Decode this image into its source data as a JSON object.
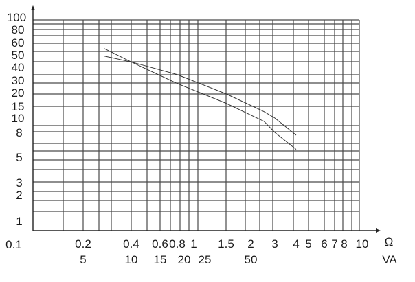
{
  "chart_data": {
    "type": "line",
    "title": "",
    "x_unit_labels": [
      "Ω",
      "VA"
    ],
    "x_tick_labels_ohm": [
      "0.1",
      "0.2",
      "0.4",
      "0.6",
      "0.8",
      "1",
      "1.5",
      "2",
      "3",
      "4",
      "5",
      "6",
      "7",
      "8",
      "10"
    ],
    "x_tick_labels_va": [
      "5",
      "10",
      "15",
      "20",
      "25",
      "50"
    ],
    "y_tick_labels": [
      "100",
      "80",
      "60",
      "50",
      "40",
      "30",
      "20",
      "15",
      "10",
      "8",
      "5",
      "3",
      "2",
      "1",
      "0.1"
    ],
    "xlim": [
      0.1,
      10
    ],
    "ylim": [
      0.1,
      100
    ],
    "grid": true,
    "series": [
      {
        "x": [
          0.27,
          0.4,
          0.8,
          1.5,
          2.5,
          3,
          4
        ],
        "y": [
          55,
          44,
          27,
          16,
          9.5,
          8,
          5.8
        ]
      },
      {
        "x": [
          0.27,
          0.4,
          0.8,
          1.5,
          2.5,
          3,
          4
        ],
        "y": [
          49,
          44,
          34,
          19.5,
          12.5,
          10,
          7.6
        ]
      }
    ],
    "colors": {
      "grid": "#4a4a4a",
      "curve": "#333333",
      "text": "#1a1a1a"
    }
  }
}
